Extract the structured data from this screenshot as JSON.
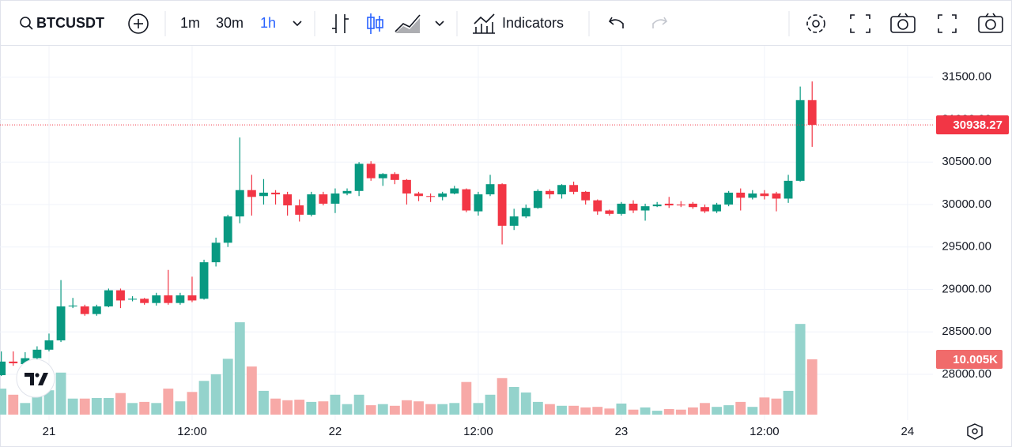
{
  "toolbar": {
    "symbol": "BTCUSDT",
    "intervals": [
      "1m",
      "30m",
      "1h"
    ],
    "indicators": "Indicators"
  },
  "chart_data": {
    "type": "candlestick",
    "x": [
      -4,
      -3,
      -2,
      -1,
      0,
      1,
      2,
      3,
      4,
      5,
      6,
      7,
      8,
      9,
      10,
      11,
      12,
      13,
      14,
      15,
      16,
      17,
      18,
      19,
      20,
      21,
      22,
      23,
      24,
      25,
      26,
      27,
      28,
      29,
      30,
      31,
      32,
      33,
      34,
      35,
      36,
      37,
      38,
      39,
      40,
      41,
      42,
      43,
      44,
      45,
      46,
      47,
      48,
      49,
      50,
      51,
      52,
      53,
      54,
      55,
      56,
      57,
      58,
      59,
      60,
      61,
      62,
      63,
      64
    ],
    "open": [
      27990,
      28150,
      28120,
      28190,
      28290,
      28400,
      28800,
      28800,
      28710,
      28800,
      28990,
      28880,
      28890,
      28840,
      28930,
      28840,
      28930,
      28890,
      29320,
      29550,
      29860,
      30170,
      30100,
      30140,
      30120,
      29990,
      29880,
      30120,
      30010,
      30130,
      30160,
      30480,
      30310,
      30360,
      30290,
      30130,
      30100,
      30090,
      30130,
      30180,
      29920,
      30120,
      30240,
      29750,
      29860,
      29960,
      30160,
      30120,
      30230,
      30150,
      30050,
      29930,
      29890,
      30010,
      29930,
      29980,
      30010,
      30000,
      30010,
      29970,
      29920,
      30000,
      30140,
      30080,
      30130,
      30130,
      30070,
      30280,
      31230
    ],
    "high": [
      28270,
      28270,
      28260,
      28330,
      28480,
      29110,
      28900,
      28820,
      28820,
      29010,
      29010,
      28920,
      28900,
      28960,
      29230,
      28960,
      29150,
      29350,
      29610,
      29880,
      30790,
      30350,
      30300,
      30170,
      30150,
      30060,
      30150,
      30150,
      30190,
      30190,
      30500,
      30510,
      30370,
      30380,
      30300,
      30150,
      30130,
      30150,
      30220,
      30190,
      30150,
      30350,
      30250,
      29950,
      30000,
      30180,
      30180,
      30240,
      30270,
      30160,
      30060,
      29940,
      30030,
      30050,
      30010,
      30030,
      30090,
      30040,
      30030,
      30000,
      30020,
      30160,
      30190,
      30170,
      30170,
      30150,
      30350,
      31390,
      31450
    ],
    "low": [
      27980,
      28100,
      28100,
      28170,
      28270,
      28380,
      28780,
      28690,
      28690,
      28790,
      28780,
      28860,
      28820,
      28810,
      28820,
      28820,
      28850,
      28880,
      29270,
      29500,
      29780,
      29870,
      30000,
      30000,
      29870,
      29800,
      29860,
      29990,
      29900,
      30110,
      30100,
      30280,
      30220,
      30240,
      30000,
      30040,
      30030,
      30050,
      30120,
      29910,
      29870,
      30100,
      29530,
      29700,
      29840,
      29950,
      30070,
      30070,
      30120,
      30000,
      29880,
      29870,
      29870,
      29900,
      29810,
      29970,
      29960,
      29970,
      29950,
      29900,
      29900,
      29980,
      29930,
      30060,
      30060,
      29920,
      30020,
      30270,
      30680
    ],
    "close": [
      28150,
      28130,
      28190,
      28290,
      28400,
      28800,
      28810,
      28710,
      28800,
      28990,
      28870,
      28890,
      28840,
      28930,
      28840,
      28930,
      28870,
      29320,
      29550,
      29860,
      30170,
      30090,
      30140,
      30120,
      29990,
      29880,
      30120,
      30010,
      30130,
      30160,
      30480,
      30310,
      30360,
      30290,
      30130,
      30100,
      30090,
      30130,
      30190,
      29930,
      30120,
      30240,
      29750,
      29860,
      29960,
      30160,
      30120,
      30230,
      30150,
      30050,
      29920,
      29890,
      30010,
      29930,
      29980,
      30000,
      29990,
      29990,
      29970,
      29920,
      30000,
      30140,
      30080,
      30130,
      30100,
      30070,
      30280,
      31230,
      30938.27
    ],
    "volume": [
      4.7,
      3.6,
      2.1,
      3.3,
      4.4,
      7.6,
      2.9,
      2.9,
      3.0,
      3.0,
      3.9,
      2.1,
      2.3,
      2.1,
      4.7,
      2.4,
      4.1,
      6.1,
      7.3,
      10.1,
      16.7,
      8.7,
      4.3,
      2.9,
      2.6,
      2.7,
      2.3,
      2.4,
      3.6,
      1.9,
      3.6,
      1.7,
      1.9,
      1.6,
      2.6,
      2.4,
      1.9,
      1.9,
      2.1,
      5.9,
      2.1,
      3.6,
      6.6,
      5.0,
      4.0,
      2.3,
      1.9,
      1.6,
      1.6,
      1.3,
      1.4,
      1.1,
      2.0,
      0.9,
      1.3,
      0.7,
      1.0,
      0.9,
      1.3,
      2.1,
      1.4,
      1.7,
      2.3,
      1.4,
      3.1,
      2.9,
      4.3,
      16.4,
      10.005
    ],
    "value_labels": [
      null,
      null,
      null,
      null,
      null,
      null,
      null,
      null,
      null,
      null,
      null,
      null,
      null,
      null,
      null,
      null,
      null,
      null,
      null,
      null,
      null,
      null,
      null,
      null,
      null,
      null,
      null,
      null,
      null,
      null,
      null,
      null,
      null,
      null,
      null,
      null,
      null,
      null,
      null,
      null,
      null,
      null,
      null,
      null,
      null,
      null,
      null,
      null,
      null,
      null,
      null,
      null,
      null,
      null,
      null,
      null,
      null,
      null,
      null,
      null,
      null,
      null,
      null,
      null,
      null,
      null,
      null,
      null,
      "10.005K"
    ],
    "up_color": "#089981",
    "down_color": "#f23645",
    "volume_up_color": "#94d3cc",
    "volume_down_color": "#f7a9a7",
    "xlim": [
      -4.11,
      74.13
    ],
    "xticks": [
      {
        "value": 0,
        "label": "21"
      },
      {
        "value": 12,
        "label": "12:00"
      },
      {
        "value": 24,
        "label": "22"
      },
      {
        "value": 36,
        "label": "12:00"
      },
      {
        "value": 48,
        "label": "23"
      },
      {
        "value": 60,
        "label": "12:00"
      },
      {
        "value": 72,
        "label": "24"
      }
    ],
    "ylim": [
      27460,
      31870
    ],
    "yticks": [
      {
        "value": 28000,
        "label": "28000.00"
      },
      {
        "value": 28500,
        "label": "28500.00"
      },
      {
        "value": 29000,
        "label": "29000.00"
      },
      {
        "value": 29500,
        "label": "29500.00"
      },
      {
        "value": 30000,
        "label": "30000.00"
      },
      {
        "value": 30500,
        "label": "30500.00"
      },
      {
        "value": 31000,
        "label": "31000.00"
      },
      {
        "value": 31500,
        "label": "31500.00"
      }
    ],
    "vlim": [
      0,
      66.7
    ],
    "grid": true
  }
}
